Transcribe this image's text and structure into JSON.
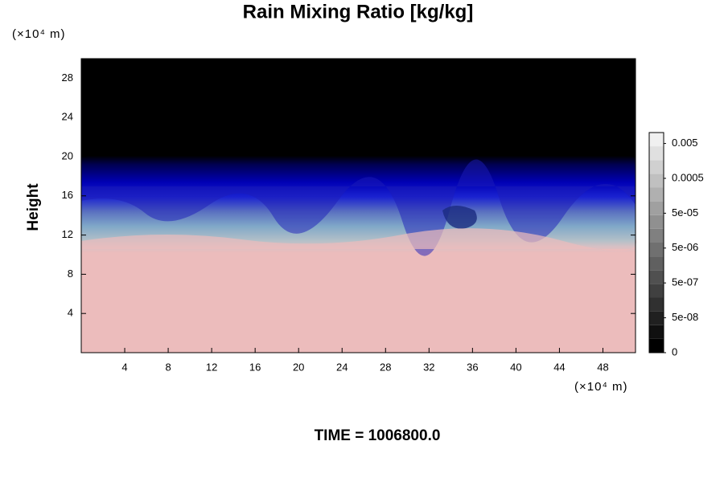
{
  "chart_data": {
    "type": "contour",
    "title": "Rain Mixing Ratio [kg/kg]",
    "y_label": "Height",
    "x_unit": "(×10⁴ m)",
    "y_unit": "(×10⁴ m)",
    "footer": "TIME = 1006800.0",
    "xlim": [
      0,
      51
    ],
    "xticks": [
      4,
      8,
      12,
      16,
      20,
      24,
      28,
      32,
      36,
      40,
      44,
      48
    ],
    "ylim": [
      0,
      30
    ],
    "yticks": [
      4,
      8,
      12,
      16,
      20,
      24,
      28
    ],
    "colorbar_ticks": [
      {
        "value": 0,
        "label": "0"
      },
      {
        "value": 5e-08,
        "label": "5e-08"
      },
      {
        "value": 5e-07,
        "label": "5e-07"
      },
      {
        "value": 5e-06,
        "label": "5e-06"
      },
      {
        "value": 5e-05,
        "label": "5e-05"
      },
      {
        "value": 0.0005,
        "label": "0.0005"
      },
      {
        "value": 0.005,
        "label": "0.005"
      }
    ]
  }
}
